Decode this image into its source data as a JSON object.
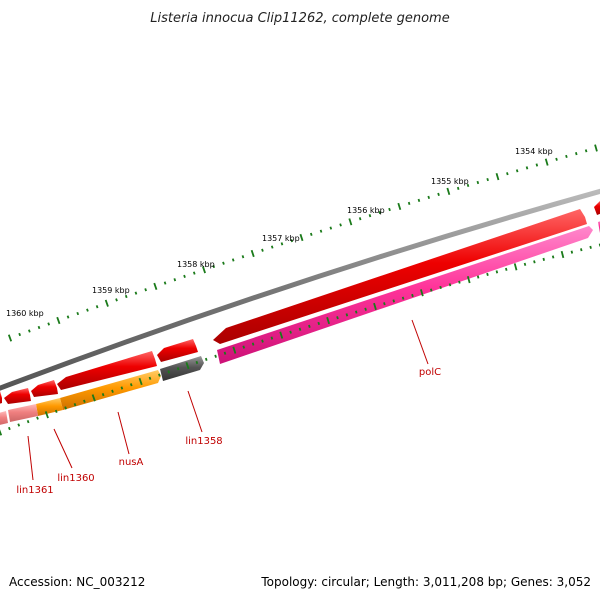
{
  "title": "Listeria innocua Clip11262, complete genome",
  "footer": {
    "accession": "Accession: NC_003212",
    "summary": "Topology: circular; Length: 3,011,208 bp; Genes: 3,052"
  },
  "kbp_labels": [
    "1354 kbp",
    "1355 kbp",
    "1356 kbp",
    "1357 kbp",
    "1358 kbp",
    "1359 kbp",
    "1360 kbp"
  ],
  "gene_labels": [
    "polC",
    "lin1358",
    "nusA",
    "lin1360",
    "lin1361"
  ],
  "colors": {
    "backbone": "#777777",
    "gene_red": "#ee0000",
    "gene_pink": "#ff3399",
    "gene_orange": "#ff9900",
    "gene_gray": "#555555",
    "gene_light_red": "#f08080",
    "tick": "#1a7a1a",
    "label": "#c00000"
  }
}
